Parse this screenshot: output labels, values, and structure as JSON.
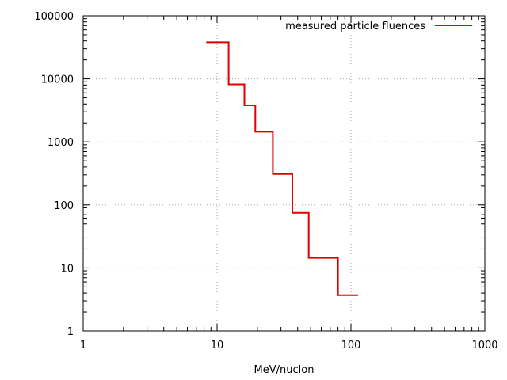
{
  "chart_data": {
    "type": "line",
    "title": "",
    "xlabel": "MeV/nuclon",
    "ylabel": "",
    "xscale": "log",
    "yscale": "log",
    "xlim": [
      1,
      1000
    ],
    "ylim": [
      1,
      100000
    ],
    "grid": true,
    "legend_position": "top-right",
    "x_ticks": [
      {
        "value": 1,
        "label": "1"
      },
      {
        "value": 10,
        "label": "10"
      },
      {
        "value": 100,
        "label": "100"
      },
      {
        "value": 1000,
        "label": "1000"
      }
    ],
    "y_ticks": [
      {
        "value": 1,
        "label": "1"
      },
      {
        "value": 10,
        "label": "10"
      },
      {
        "value": 100,
        "label": "100"
      },
      {
        "value": 1000,
        "label": "1000"
      },
      {
        "value": 10000,
        "label": "10000"
      },
      {
        "value": 100000,
        "label": "100000"
      }
    ],
    "series": [
      {
        "name": "measured particle fluences",
        "color": "#e00000",
        "style": "step",
        "steps": [
          {
            "x_start": 8.3,
            "x_end": 12.2,
            "y": 38000
          },
          {
            "x_start": 12.2,
            "x_end": 16.0,
            "y": 8200
          },
          {
            "x_start": 16.0,
            "x_end": 19.3,
            "y": 3800
          },
          {
            "x_start": 19.3,
            "x_end": 26.1,
            "y": 1450
          },
          {
            "x_start": 26.1,
            "x_end": 36.5,
            "y": 310
          },
          {
            "x_start": 36.5,
            "x_end": 48.4,
            "y": 75
          },
          {
            "x_start": 48.4,
            "x_end": 80.0,
            "y": 14.5
          },
          {
            "x_start": 80.0,
            "x_end": 113.0,
            "y": 3.7
          }
        ]
      }
    ]
  }
}
